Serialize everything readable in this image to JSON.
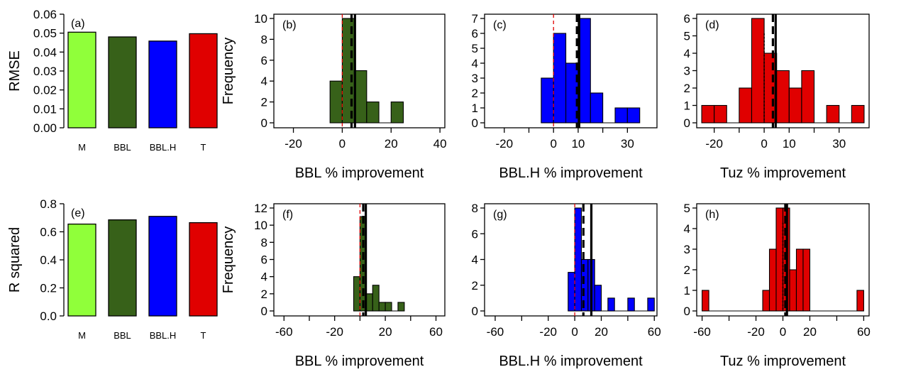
{
  "figure": {
    "colors": {
      "M": "#90ff3a",
      "BBL": "#376119",
      "BBL.H": "#0000ff",
      "T": "#e00000",
      "zero_line": "#e00000"
    },
    "bar_panels": [
      {
        "key": "a",
        "letter": "(a)",
        "ylabel": "RMSE",
        "ylim": [
          0,
          0.06
        ],
        "yticks": [
          "0.00",
          "0.01",
          "0.02",
          "0.03",
          "0.04",
          "0.05",
          "0.06"
        ],
        "categories": [
          "M",
          "BBL",
          "BBL.H",
          "T"
        ],
        "values": [
          0.0505,
          0.048,
          0.0458,
          0.0497
        ]
      },
      {
        "key": "e",
        "letter": "(e)",
        "ylabel": "R squared",
        "ylim": [
          0,
          0.8
        ],
        "yticks": [
          "0.0",
          "0.2",
          "0.4",
          "0.6",
          "0.8"
        ],
        "categories": [
          "M",
          "BBL",
          "BBL.H",
          "T"
        ],
        "values": [
          0.655,
          0.685,
          0.71,
          0.665
        ]
      }
    ],
    "hist_panels": [
      {
        "key": "b",
        "letter": "(b)",
        "ylabel": "Frequency",
        "xlabel": "BBL % improvement",
        "color_key": "BBL",
        "xlim": [
          -28,
          42
        ],
        "ylim": [
          0,
          10
        ],
        "xticks": [
          -20,
          0,
          20,
          40
        ],
        "xtick_labels": [
          "-20",
          "0",
          "20",
          "40"
        ],
        "yticks": [
          0,
          2,
          4,
          6,
          8,
          10
        ],
        "yticklabels": [
          "0",
          "2",
          "4",
          "6",
          "8",
          "10"
        ],
        "bins": [
          [
            -5,
            0,
            4
          ],
          [
            0,
            5,
            10
          ],
          [
            5,
            10,
            5
          ],
          [
            10,
            15,
            2
          ],
          [
            15,
            20,
            0
          ],
          [
            20,
            25,
            2
          ]
        ],
        "vlines": [
          {
            "x": 0,
            "style": "zero"
          },
          {
            "x": 3.8,
            "style": "dashed"
          },
          {
            "x": 5.2,
            "style": "solid"
          }
        ]
      },
      {
        "key": "c",
        "letter": "(c)",
        "ylabel": "",
        "xlabel": "BBL.H % improvement",
        "color_key": "BBL.H",
        "xlim": [
          -28,
          42
        ],
        "ylim": [
          0,
          7
        ],
        "xticks": [
          -20,
          -10,
          0,
          10,
          20,
          30
        ],
        "xtick_labels": [
          "-20",
          "",
          "0",
          "10",
          "",
          "30"
        ],
        "yticks": [
          0,
          1,
          2,
          3,
          4,
          5,
          6,
          7
        ],
        "yticklabels": [
          "0",
          "1",
          "2",
          "3",
          "4",
          "5",
          "6",
          "7"
        ],
        "bins": [
          [
            -5,
            0,
            3
          ],
          [
            0,
            5,
            6
          ],
          [
            5,
            10,
            4
          ],
          [
            10,
            15,
            7
          ],
          [
            15,
            20,
            2
          ],
          [
            20,
            25,
            0
          ],
          [
            25,
            30,
            1
          ],
          [
            30,
            35,
            1
          ]
        ],
        "vlines": [
          {
            "x": 0,
            "style": "zero"
          },
          {
            "x": 9.5,
            "style": "dashed"
          },
          {
            "x": 10.4,
            "style": "solid"
          }
        ]
      },
      {
        "key": "d",
        "letter": "(d)",
        "ylabel": "",
        "xlabel": "Tuz % improvement",
        "color_key": "T",
        "xlim": [
          -27,
          42
        ],
        "ylim": [
          0,
          6
        ],
        "xticks": [
          -20,
          -10,
          0,
          10,
          20,
          30
        ],
        "xtick_labels": [
          "-20",
          "",
          "0",
          "10",
          "",
          "30"
        ],
        "yticks": [
          0,
          1,
          2,
          3,
          4,
          5,
          6
        ],
        "yticklabels": [
          "0",
          "1",
          "2",
          "3",
          "4",
          "5",
          "6"
        ],
        "bins": [
          [
            -25,
            -20,
            1
          ],
          [
            -20,
            -15,
            1
          ],
          [
            -15,
            -10,
            0
          ],
          [
            -10,
            -5,
            2
          ],
          [
            -5,
            0,
            6
          ],
          [
            0,
            5,
            4
          ],
          [
            5,
            10,
            3
          ],
          [
            10,
            15,
            2
          ],
          [
            15,
            20,
            3
          ],
          [
            20,
            25,
            0
          ],
          [
            25,
            30,
            1
          ],
          [
            30,
            35,
            0
          ],
          [
            35,
            40,
            1
          ]
        ],
        "vlines": [
          {
            "x": 0,
            "style": "zero_dotted"
          },
          {
            "x": 3.5,
            "style": "dashed"
          },
          {
            "x": 4.6,
            "style": "solid"
          }
        ]
      },
      {
        "key": "f",
        "letter": "(f)",
        "ylabel": "Frequency",
        "xlabel": "BBL % improvement",
        "color_key": "BBL",
        "xlim": [
          -68,
          67
        ],
        "ylim": [
          0,
          12
        ],
        "xticks": [
          -60,
          -40,
          -20,
          0,
          20,
          40,
          60
        ],
        "xtick_labels": [
          "-60",
          "",
          "-20",
          "",
          "20",
          "",
          "60"
        ],
        "yticks": [
          0,
          2,
          4,
          6,
          8,
          10,
          12
        ],
        "yticklabels": [
          "0",
          "2",
          "4",
          "6",
          "8",
          "10",
          "12"
        ],
        "bins": [
          [
            -5,
            0,
            4
          ],
          [
            0,
            5,
            11
          ],
          [
            5,
            10,
            2
          ],
          [
            10,
            15,
            3
          ],
          [
            15,
            20,
            1
          ],
          [
            20,
            25,
            1
          ],
          [
            25,
            30,
            0
          ],
          [
            30,
            35,
            1
          ]
        ],
        "vlines": [
          {
            "x": 0,
            "style": "zero"
          },
          {
            "x": 2.6,
            "style": "dashed"
          },
          {
            "x": 4.6,
            "style": "solid"
          }
        ]
      },
      {
        "key": "g",
        "letter": "(g)",
        "ylabel": "",
        "xlabel": "BBL.H % improvement",
        "color_key": "BBL.H",
        "xlim": [
          -68,
          62
        ],
        "ylim": [
          0,
          8
        ],
        "xticks": [
          -60,
          -40,
          -20,
          0,
          20,
          40,
          60
        ],
        "xtick_labels": [
          "-60",
          "",
          "-20",
          "0",
          "20",
          "",
          "60"
        ],
        "yticks": [
          0,
          2,
          4,
          6,
          8
        ],
        "yticklabels": [
          "0",
          "2",
          "4",
          "6",
          "8"
        ],
        "bins": [
          [
            -5,
            0,
            3
          ],
          [
            0,
            5,
            8
          ],
          [
            5,
            10,
            4
          ],
          [
            10,
            15,
            4
          ],
          [
            15,
            20,
            2
          ],
          [
            20,
            25,
            0
          ],
          [
            25,
            30,
            1
          ],
          [
            30,
            35,
            0
          ],
          [
            35,
            40,
            0
          ],
          [
            40,
            45,
            1
          ],
          [
            45,
            50,
            0
          ],
          [
            50,
            55,
            0
          ],
          [
            55,
            60,
            1
          ]
        ],
        "vlines": [
          {
            "x": 0,
            "style": "zero"
          },
          {
            "x": 6.5,
            "style": "dashed"
          },
          {
            "x": 12.5,
            "style": "solid"
          }
        ]
      },
      {
        "key": "h",
        "letter": "(h)",
        "ylabel": "",
        "xlabel": "Tuz % improvement",
        "color_key": "T",
        "xlim": [
          -64,
          64
        ],
        "ylim": [
          0,
          5
        ],
        "xticks": [
          -60,
          -40,
          -20,
          0,
          20,
          40,
          60
        ],
        "xtick_labels": [
          "-60",
          "",
          "-20",
          "0",
          "20",
          "",
          "60"
        ],
        "yticks": [
          0,
          1,
          2,
          3,
          4,
          5
        ],
        "yticklabels": [
          "0",
          "1",
          "2",
          "3",
          "4",
          "5"
        ],
        "bins": [
          [
            -60,
            -55,
            1
          ],
          [
            -55,
            -15,
            0
          ],
          [
            -15,
            -10,
            1
          ],
          [
            -10,
            -5,
            3
          ],
          [
            -5,
            0,
            5
          ],
          [
            0,
            5,
            5
          ],
          [
            5,
            10,
            2
          ],
          [
            10,
            15,
            3
          ],
          [
            15,
            20,
            3
          ],
          [
            20,
            55,
            0
          ],
          [
            55,
            60,
            1
          ]
        ],
        "vlines": [
          {
            "x": 0,
            "style": "zero_dotted"
          },
          {
            "x": 1.8,
            "style": "dashed"
          },
          {
            "x": 3.0,
            "style": "solid"
          }
        ]
      }
    ]
  },
  "chart_data": [
    {
      "type": "bar",
      "panel": "(a)",
      "title": "",
      "xlabel": "",
      "ylabel": "RMSE",
      "categories": [
        "M",
        "BBL",
        "BBL.H",
        "T"
      ],
      "values": [
        0.0505,
        0.048,
        0.0458,
        0.0497
      ],
      "ylim": [
        0,
        0.06
      ],
      "grid": false
    },
    {
      "type": "bar",
      "panel": "(e)",
      "title": "",
      "xlabel": "",
      "ylabel": "R squared",
      "categories": [
        "M",
        "BBL",
        "BBL.H",
        "T"
      ],
      "values": [
        0.655,
        0.685,
        0.71,
        0.665
      ],
      "ylim": [
        0,
        0.8
      ],
      "grid": false
    },
    {
      "type": "bar",
      "subtype": "histogram",
      "panel": "(b)",
      "xlabel": "BBL % improvement",
      "ylabel": "Frequency",
      "bin_edges": [
        -5,
        0,
        5,
        10,
        15,
        20,
        25
      ],
      "counts": [
        4,
        10,
        5,
        2,
        0,
        2
      ],
      "xlim": [
        -28,
        42
      ],
      "ylim": [
        0,
        10
      ]
    },
    {
      "type": "bar",
      "subtype": "histogram",
      "panel": "(c)",
      "xlabel": "BBL.H % improvement",
      "ylabel": "",
      "bin_edges": [
        -5,
        0,
        5,
        10,
        15,
        20,
        25,
        30,
        35
      ],
      "counts": [
        3,
        6,
        4,
        7,
        2,
        0,
        1,
        1
      ],
      "xlim": [
        -28,
        42
      ],
      "ylim": [
        0,
        7
      ]
    },
    {
      "type": "bar",
      "subtype": "histogram",
      "panel": "(d)",
      "xlabel": "Tuz % improvement",
      "ylabel": "",
      "bin_edges": [
        -25,
        -20,
        -15,
        -10,
        -5,
        0,
        5,
        10,
        15,
        20,
        25,
        30,
        35,
        40
      ],
      "counts": [
        1,
        1,
        0,
        2,
        6,
        4,
        3,
        2,
        3,
        0,
        1,
        0,
        1
      ],
      "xlim": [
        -27,
        42
      ],
      "ylim": [
        0,
        6
      ]
    },
    {
      "type": "bar",
      "subtype": "histogram",
      "panel": "(f)",
      "xlabel": "BBL % improvement",
      "ylabel": "Frequency",
      "bin_edges": [
        -5,
        0,
        5,
        10,
        15,
        20,
        25,
        30,
        35
      ],
      "counts": [
        4,
        11,
        2,
        3,
        1,
        1,
        0,
        1
      ],
      "xlim": [
        -68,
        67
      ],
      "ylim": [
        0,
        12
      ]
    },
    {
      "type": "bar",
      "subtype": "histogram",
      "panel": "(g)",
      "xlabel": "BBL.H % improvement",
      "ylabel": "",
      "bin_edges": [
        -5,
        0,
        5,
        10,
        15,
        20,
        25,
        30,
        35,
        40,
        45,
        50,
        55,
        60
      ],
      "counts": [
        3,
        8,
        4,
        4,
        2,
        0,
        1,
        0,
        0,
        1,
        0,
        0,
        1
      ],
      "xlim": [
        -68,
        62
      ],
      "ylim": [
        0,
        8
      ]
    },
    {
      "type": "bar",
      "subtype": "histogram",
      "panel": "(h)",
      "xlabel": "Tuz % improvement",
      "ylabel": "",
      "bin_edges": [
        -60,
        -55,
        -15,
        -10,
        -5,
        0,
        5,
        10,
        15,
        20,
        55,
        60
      ],
      "counts": [
        1,
        0,
        1,
        3,
        5,
        5,
        2,
        3,
        3,
        0,
        1
      ],
      "xlim": [
        -64,
        64
      ],
      "ylim": [
        0,
        5
      ]
    }
  ]
}
